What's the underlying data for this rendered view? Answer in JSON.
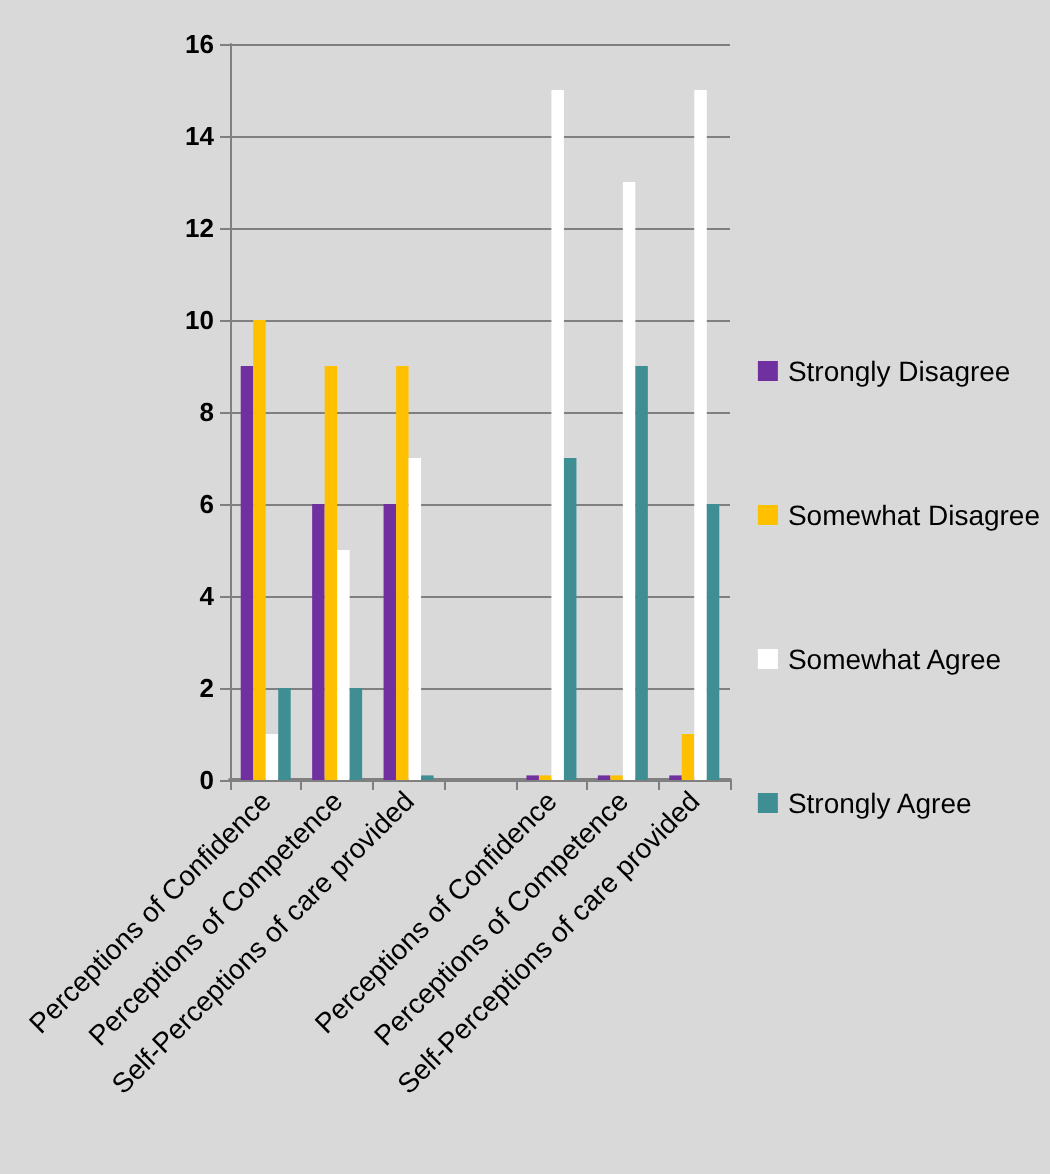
{
  "chart_data": {
    "type": "bar",
    "categories": [
      "Perceptions of Confidence",
      "Perceptions of Competence",
      "Self-Perceptions of care provided",
      null,
      "Perceptions of Confidence",
      "Perceptions of Competence",
      "Self-Perceptions of care provided"
    ],
    "series": [
      {
        "name": "Strongly Disagree",
        "color": "#7030a0",
        "values": [
          9,
          6,
          6,
          null,
          0.1,
          0.1,
          0.1
        ]
      },
      {
        "name": "Somewhat Disagree",
        "color": "#ffc000",
        "values": [
          10,
          9,
          9,
          null,
          0.1,
          0.1,
          1
        ]
      },
      {
        "name": "Somewhat Agree",
        "color": "#ffffff",
        "values": [
          1,
          5,
          7,
          null,
          15,
          13,
          15
        ]
      },
      {
        "name": "Strongly Agree",
        "color": "#3e8e93",
        "values": [
          2,
          2,
          0.1,
          null,
          7,
          9,
          6
        ]
      }
    ],
    "ylim": [
      0,
      16
    ],
    "yticks": [
      0,
      2,
      4,
      6,
      8,
      10,
      12,
      14,
      16
    ],
    "grid": "y",
    "legend": "right"
  }
}
